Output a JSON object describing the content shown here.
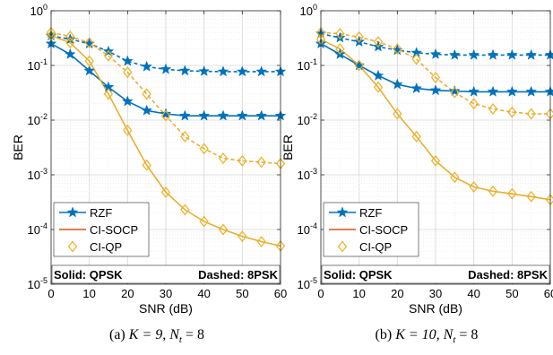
{
  "chart_data": [
    {
      "type": "line",
      "caption": {
        "prefix": "(a)",
        "math": "K = 9, N",
        "sub": "t",
        "suffix": " = 8"
      },
      "xlabel": "SNR (dB)",
      "ylabel": "BER",
      "xlim": [
        0,
        60
      ],
      "ylim": [
        1e-05,
        1
      ],
      "yscale": "log",
      "grid": true,
      "xticks": [
        0,
        10,
        20,
        30,
        40,
        50,
        60
      ],
      "yticks": [
        1e-05,
        0.0001,
        0.001,
        0.01,
        0.1,
        1
      ],
      "legend": {
        "position": "lower-left",
        "entries": [
          "RZF",
          "CI-SOCP",
          "CI-QP"
        ]
      },
      "annotations": [
        "Solid: QPSK",
        "Dashed: 8PSK"
      ],
      "x": [
        0,
        5,
        10,
        15,
        20,
        25,
        30,
        35,
        40,
        45,
        50,
        55,
        60
      ],
      "series": [
        {
          "name": "RZF",
          "modulation": "QPSK",
          "style": "solid",
          "color": "#0072BD",
          "marker": "star",
          "values": [
            0.25,
            0.16,
            0.08,
            0.04,
            0.022,
            0.015,
            0.013,
            0.012,
            0.012,
            0.012,
            0.012,
            0.012,
            0.012
          ]
        },
        {
          "name": "RZF",
          "modulation": "8PSK",
          "style": "dashed",
          "color": "#0072BD",
          "marker": "star",
          "values": [
            0.35,
            0.3,
            0.25,
            0.18,
            0.12,
            0.095,
            0.085,
            0.08,
            0.078,
            0.077,
            0.077,
            0.077,
            0.077
          ]
        },
        {
          "name": "CI-SOCP",
          "modulation": "QPSK",
          "style": "solid",
          "color": "#D95319",
          "marker": "none",
          "values": [
            0.35,
            0.26,
            0.12,
            0.03,
            0.0065,
            0.0015,
            0.00048,
            0.00023,
            0.00014,
            0.0001,
            7.5e-05,
            6e-05,
            5e-05
          ]
        },
        {
          "name": "CI-SOCP",
          "modulation": "8PSK",
          "style": "dashed",
          "color": "#D95319",
          "marker": "none",
          "values": [
            0.4,
            0.34,
            0.26,
            0.15,
            0.075,
            0.03,
            0.012,
            0.005,
            0.003,
            0.002,
            0.0018,
            0.0017,
            0.0016
          ]
        },
        {
          "name": "CI-QP",
          "modulation": "QPSK",
          "style": "solid",
          "color": "#EDB120",
          "marker": "diamond",
          "values": [
            0.35,
            0.26,
            0.12,
            0.03,
            0.0065,
            0.0015,
            0.00048,
            0.00023,
            0.00014,
            0.0001,
            7.5e-05,
            6e-05,
            5e-05
          ]
        },
        {
          "name": "CI-QP",
          "modulation": "8PSK",
          "style": "dashed",
          "color": "#EDB120",
          "marker": "diamond",
          "values": [
            0.4,
            0.34,
            0.26,
            0.15,
            0.075,
            0.03,
            0.012,
            0.005,
            0.003,
            0.002,
            0.0018,
            0.0017,
            0.0016
          ]
        }
      ]
    },
    {
      "type": "line",
      "caption": {
        "prefix": "(b)",
        "math": "K = 10, N",
        "sub": "t",
        "suffix": " = 8"
      },
      "xlabel": "SNR (dB)",
      "ylabel": "BER",
      "xlim": [
        0,
        60
      ],
      "ylim": [
        1e-05,
        1
      ],
      "yscale": "log",
      "grid": true,
      "xticks": [
        0,
        10,
        20,
        30,
        40,
        50,
        60
      ],
      "yticks": [
        1e-05,
        0.0001,
        0.001,
        0.01,
        0.1,
        1
      ],
      "legend": {
        "position": "lower-left",
        "entries": [
          "RZF",
          "CI-SOCP",
          "CI-QP"
        ]
      },
      "annotations": [
        "Solid: QPSK",
        "Dashed: 8PSK"
      ],
      "x": [
        0,
        5,
        10,
        15,
        20,
        25,
        30,
        35,
        40,
        45,
        50,
        55,
        60
      ],
      "series": [
        {
          "name": "RZF",
          "modulation": "QPSK",
          "style": "solid",
          "color": "#0072BD",
          "marker": "star",
          "values": [
            0.25,
            0.16,
            0.1,
            0.065,
            0.045,
            0.038,
            0.035,
            0.034,
            0.033,
            0.033,
            0.033,
            0.033,
            0.033
          ]
        },
        {
          "name": "RZF",
          "modulation": "8PSK",
          "style": "dashed",
          "color": "#0072BD",
          "marker": "star",
          "values": [
            0.38,
            0.32,
            0.27,
            0.22,
            0.19,
            0.17,
            0.16,
            0.155,
            0.155,
            0.155,
            0.155,
            0.155,
            0.155
          ]
        },
        {
          "name": "CI-SOCP",
          "modulation": "QPSK",
          "style": "solid",
          "color": "#D95319",
          "marker": "none",
          "values": [
            0.3,
            0.2,
            0.1,
            0.04,
            0.013,
            0.005,
            0.0018,
            0.0009,
            0.0006,
            0.0005,
            0.00045,
            0.0004,
            0.00035
          ]
        },
        {
          "name": "CI-SOCP",
          "modulation": "8PSK",
          "style": "dashed",
          "color": "#D95319",
          "marker": "none",
          "values": [
            0.4,
            0.38,
            0.33,
            0.27,
            0.2,
            0.13,
            0.06,
            0.032,
            0.02,
            0.016,
            0.014,
            0.013,
            0.013
          ]
        },
        {
          "name": "CI-QP",
          "modulation": "QPSK",
          "style": "solid",
          "color": "#EDB120",
          "marker": "diamond",
          "values": [
            0.3,
            0.2,
            0.1,
            0.04,
            0.013,
            0.005,
            0.0018,
            0.0009,
            0.0006,
            0.0005,
            0.00045,
            0.0004,
            0.00035
          ]
        },
        {
          "name": "CI-QP",
          "modulation": "8PSK",
          "style": "dashed",
          "color": "#EDB120",
          "marker": "diamond",
          "values": [
            0.4,
            0.38,
            0.33,
            0.27,
            0.2,
            0.13,
            0.06,
            0.032,
            0.02,
            0.016,
            0.014,
            0.013,
            0.013
          ]
        }
      ]
    }
  ]
}
